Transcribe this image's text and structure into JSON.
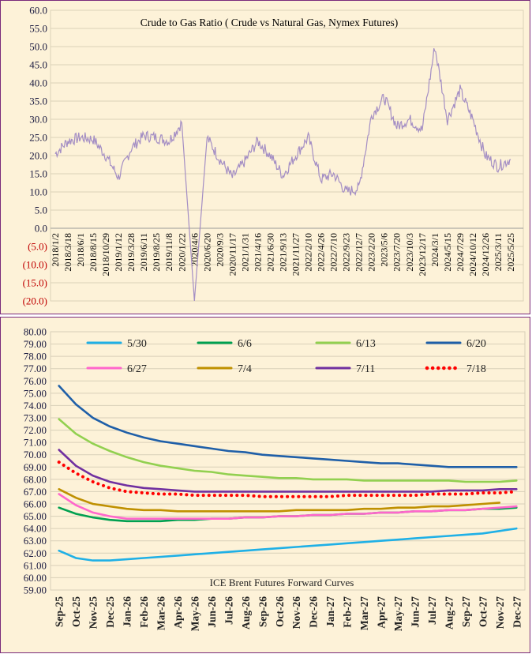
{
  "charts": [
    {
      "title": "Crude to Gas Ratio ( Crude vs Natural Gas, Nymex Futures)",
      "y_ticks": [
        "60.0",
        "55.0",
        "50.0",
        "45.0",
        "40.0",
        "35.0",
        "30.0",
        "25.0",
        "20.0",
        "15.0",
        "10.0",
        "5.0",
        "0.0",
        "(5.0)",
        "(10.0)",
        "(15.0)",
        "(20.0)"
      ],
      "x_ticks": [
        "2018/1/2",
        "2018/3/18",
        "2018/6/1",
        "2018/8/15",
        "2018/10/29",
        "2019/1/12",
        "2019/3/28",
        "2019/6/11",
        "2019/8/25",
        "2019/11/8",
        "2020/1/22",
        "2020/4/6",
        "2020/6/20",
        "2020/9/3",
        "2020/11/17",
        "2021/1/31",
        "2021/4/16",
        "2021/6/30",
        "2021/9/13",
        "2021/11/27",
        "2022/2/10",
        "2022/4/26",
        "2022/7/10",
        "2022/9/23",
        "2022/12/7",
        "2023/2/20",
        "2023/5/6",
        "2023/7/20",
        "2023/10/3",
        "2023/12/17",
        "2024/3/1",
        "2024/5/15",
        "2024/7/29",
        "2024/10/12",
        "2024/12/26",
        "2025/3/11",
        "2025/5/25"
      ],
      "colors": {
        "line": "#a48ec4",
        "grid": "#dcd2b8",
        "negative_tick": "#c00000"
      }
    },
    {
      "title": "ICE Brent Futures Forward Curves",
      "y_ticks": [
        "80.00",
        "79.00",
        "78.00",
        "77.00",
        "76.00",
        "75.00",
        "74.00",
        "73.00",
        "72.00",
        "71.00",
        "70.00",
        "69.00",
        "68.00",
        "67.00",
        "66.00",
        "65.00",
        "64.00",
        "63.00",
        "62.00",
        "61.00",
        "60.00",
        "59.00"
      ],
      "colors": {
        "grid": "#d8cfb8"
      }
    }
  ],
  "chart_data": [
    {
      "type": "line",
      "title": "Crude to Gas Ratio ( Crude vs Natural Gas, Nymex Futures)",
      "xlabel": "",
      "ylabel": "",
      "ylim": [
        -20,
        60
      ],
      "x": [
        "2018/1/2",
        "2018/3/18",
        "2018/6/1",
        "2018/8/15",
        "2018/10/29",
        "2019/1/12",
        "2019/3/28",
        "2019/6/11",
        "2019/8/25",
        "2019/11/8",
        "2020/1/22",
        "2020/4/6",
        "2020/6/20",
        "2020/9/3",
        "2020/11/17",
        "2021/1/31",
        "2021/4/16",
        "2021/6/30",
        "2021/9/13",
        "2021/11/27",
        "2022/2/10",
        "2022/4/26",
        "2022/7/10",
        "2022/9/23",
        "2022/12/7",
        "2023/2/20",
        "2023/5/6",
        "2023/7/20",
        "2023/10/3",
        "2023/12/17",
        "2024/3/1",
        "2024/5/15",
        "2024/7/29",
        "2024/10/12",
        "2024/12/26",
        "2025/3/11",
        "2025/5/25"
      ],
      "series": [
        {
          "values": [
            20.5,
            24.0,
            25.0,
            24.5,
            20.0,
            14.0,
            22.0,
            25.5,
            25.0,
            24.0,
            29.0,
            -20.0,
            25.0,
            19.0,
            14.0,
            18.5,
            24.0,
            20.0,
            14.5,
            20.0,
            25.0,
            13.5,
            15.0,
            10.0,
            11.0,
            31.0,
            36.0,
            28.0,
            30.0,
            27.0,
            50.0,
            30.0,
            38.0,
            30.0,
            20.0,
            17.0,
            19.0
          ]
        }
      ],
      "grid": true
    },
    {
      "type": "line",
      "title": "ICE Brent Futures Forward Curves",
      "xlabel": "",
      "ylabel": "",
      "ylim": [
        59,
        80
      ],
      "categories": [
        "Sep-25",
        "Oct-25",
        "Nov-25",
        "Dec-25",
        "Jan-26",
        "Feb-26",
        "Mar-26",
        "Apr-26",
        "May-26",
        "Jun-26",
        "Jul-26",
        "Aug-26",
        "Sep-26",
        "Oct-26",
        "Nov-26",
        "Dec-26",
        "Jan-27",
        "Feb-27",
        "Mar-27",
        "Apr-27",
        "May-27",
        "Jun-27",
        "Jul-27",
        "Aug-27",
        "Sep-27",
        "Oct-27",
        "Nov-27",
        "Dec-27"
      ],
      "legend_position": "top",
      "grid": true,
      "series": [
        {
          "name": "5/30",
          "color": "#1fb0e6",
          "style": "solid",
          "values": [
            62.2,
            61.6,
            61.4,
            61.4,
            61.5,
            61.6,
            61.7,
            61.8,
            61.9,
            62.0,
            62.1,
            62.2,
            62.3,
            62.4,
            62.5,
            62.6,
            62.7,
            62.8,
            62.9,
            63.0,
            63.1,
            63.2,
            63.3,
            63.4,
            63.5,
            63.6,
            63.8,
            64.0
          ]
        },
        {
          "name": "6/6",
          "color": "#00a050",
          "style": "solid",
          "values": [
            65.7,
            65.2,
            64.9,
            64.7,
            64.6,
            64.6,
            64.6,
            64.7,
            64.7,
            64.8,
            64.8,
            64.9,
            64.9,
            65.0,
            65.0,
            65.1,
            65.1,
            65.2,
            65.2,
            65.3,
            65.3,
            65.4,
            65.4,
            65.5,
            65.5,
            65.6,
            65.6,
            65.7
          ]
        },
        {
          "name": "6/13",
          "color": "#92d050",
          "style": "solid",
          "values": [
            72.9,
            71.7,
            70.9,
            70.3,
            69.8,
            69.4,
            69.1,
            68.9,
            68.7,
            68.6,
            68.4,
            68.3,
            68.2,
            68.1,
            68.1,
            68.0,
            68.0,
            68.0,
            67.9,
            67.9,
            67.9,
            67.9,
            67.9,
            67.9,
            67.8,
            67.8,
            67.8,
            67.9
          ]
        },
        {
          "name": "6/20",
          "color": "#1f5fa8",
          "style": "solid",
          "values": [
            75.6,
            74.1,
            73.0,
            72.3,
            71.8,
            71.4,
            71.1,
            70.9,
            70.7,
            70.5,
            70.3,
            70.2,
            70.0,
            69.9,
            69.8,
            69.7,
            69.6,
            69.5,
            69.4,
            69.3,
            69.3,
            69.2,
            69.1,
            69.0,
            69.0,
            69.0,
            69.0,
            69.0
          ]
        },
        {
          "name": "6/27",
          "color": "#ff66cc",
          "style": "solid",
          "values": [
            66.8,
            65.9,
            65.3,
            65.0,
            64.8,
            64.8,
            64.8,
            64.8,
            64.8,
            64.8,
            64.8,
            64.9,
            64.9,
            65.0,
            65.0,
            65.1,
            65.1,
            65.2,
            65.2,
            65.3,
            65.3,
            65.4,
            65.4,
            65.5,
            65.5,
            65.6,
            65.7,
            65.8
          ]
        },
        {
          "name": "7/4",
          "color": "#bf9000",
          "style": "solid",
          "values": [
            67.2,
            66.5,
            66.0,
            65.8,
            65.6,
            65.5,
            65.5,
            65.4,
            65.4,
            65.4,
            65.4,
            65.4,
            65.4,
            65.4,
            65.5,
            65.5,
            65.5,
            65.5,
            65.6,
            65.6,
            65.7,
            65.7,
            65.8,
            65.8,
            65.9,
            66.0,
            66.1,
            null
          ]
        },
        {
          "name": "7/11",
          "color": "#7030a0",
          "style": "solid",
          "values": [
            70.4,
            69.1,
            68.3,
            67.8,
            67.5,
            67.3,
            67.2,
            67.1,
            67.0,
            67.0,
            67.0,
            67.0,
            67.0,
            67.0,
            67.0,
            67.0,
            67.0,
            67.0,
            67.0,
            67.0,
            67.0,
            67.0,
            67.0,
            67.1,
            67.1,
            67.1,
            67.2,
            67.2
          ]
        },
        {
          "name": "7/18",
          "color": "#ff0000",
          "style": "dotted",
          "values": [
            69.4,
            68.5,
            67.8,
            67.3,
            67.0,
            66.9,
            66.8,
            66.8,
            66.7,
            66.7,
            66.7,
            66.7,
            66.6,
            66.6,
            66.6,
            66.6,
            66.6,
            66.7,
            66.7,
            66.7,
            66.7,
            66.7,
            66.8,
            66.8,
            66.8,
            66.9,
            66.9,
            67.0
          ]
        }
      ]
    }
  ]
}
